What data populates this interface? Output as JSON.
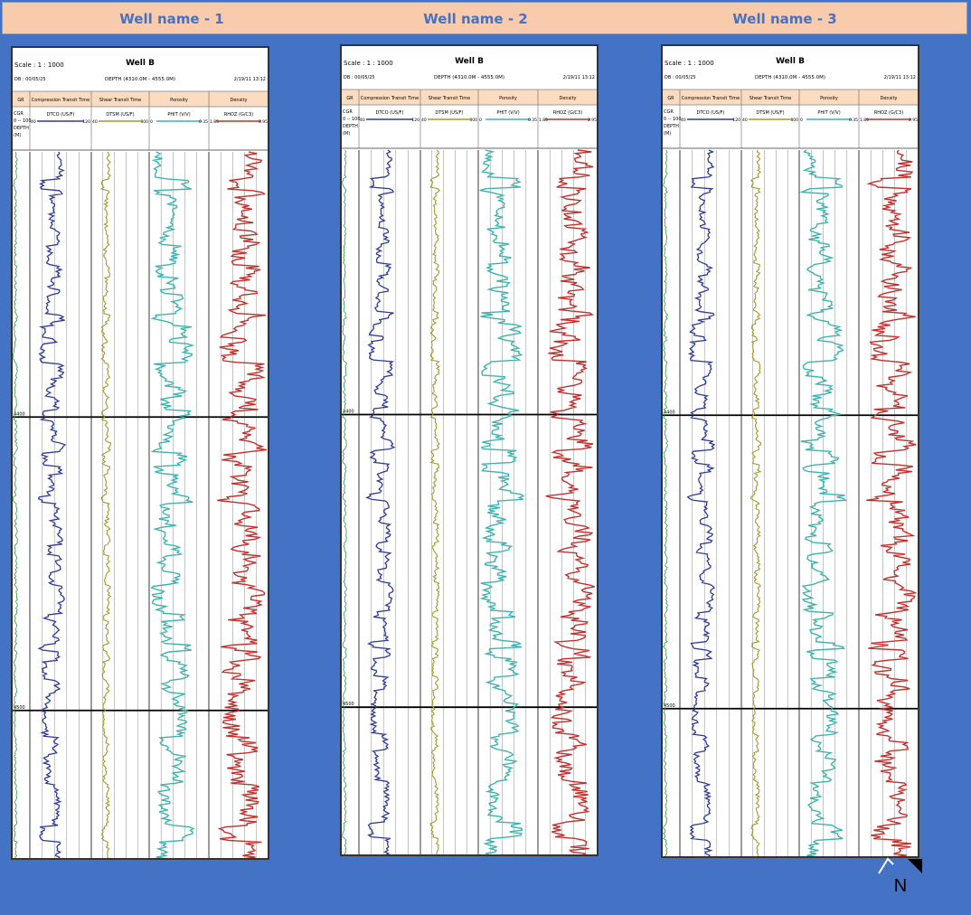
{
  "well_titles": [
    "Well name - 1",
    "Well name - 2",
    "Well name - 3"
  ],
  "panel_header": {
    "scale": "Scale : 1 : 1000",
    "well": "Well B",
    "db": "DB : 00/05/25",
    "depth_range": "DEPTH (4310.0M - 4555.0M)",
    "date": "2/19/11 13:12"
  },
  "track_titles": [
    "GR",
    "Compression Transit Time",
    "Shear Transit Time",
    "Porosity",
    "Density"
  ],
  "curve_headers": [
    {
      "label": "DTCO (US/F)",
      "left": "40",
      "right": "120",
      "color": "#2e3a9a"
    },
    {
      "label": "DTSM (US/F)",
      "left": "40",
      "right": "300",
      "color": "#a09a2a"
    },
    {
      "label": "PHIT (V/V)",
      "left": "0",
      "right": "0.35",
      "color": "#3eb3ad"
    },
    {
      "label": "RHOZ (G/C3)",
      "left": "1.85",
      "right": "2.95",
      "color": "#c0302c"
    }
  ],
  "gr_header": {
    "lines": [
      "CGR",
      "0 -- 100",
      "DEPTH",
      "(M)"
    ],
    "color": "#2a9a3a"
  },
  "depth_markers": [
    "4400",
    "4500"
  ],
  "compass_label": "N",
  "colors": {
    "background": "#4472c4",
    "title_bar": "#f8cbad",
    "title_text": "#4472c4",
    "track_header": "#fbdcc0",
    "gr": "#2a9a3a",
    "dtco": "#2e3a9a",
    "dtsm": "#a09a2a",
    "phit": "#3eb3ad",
    "rhoz": "#c0302c"
  }
}
